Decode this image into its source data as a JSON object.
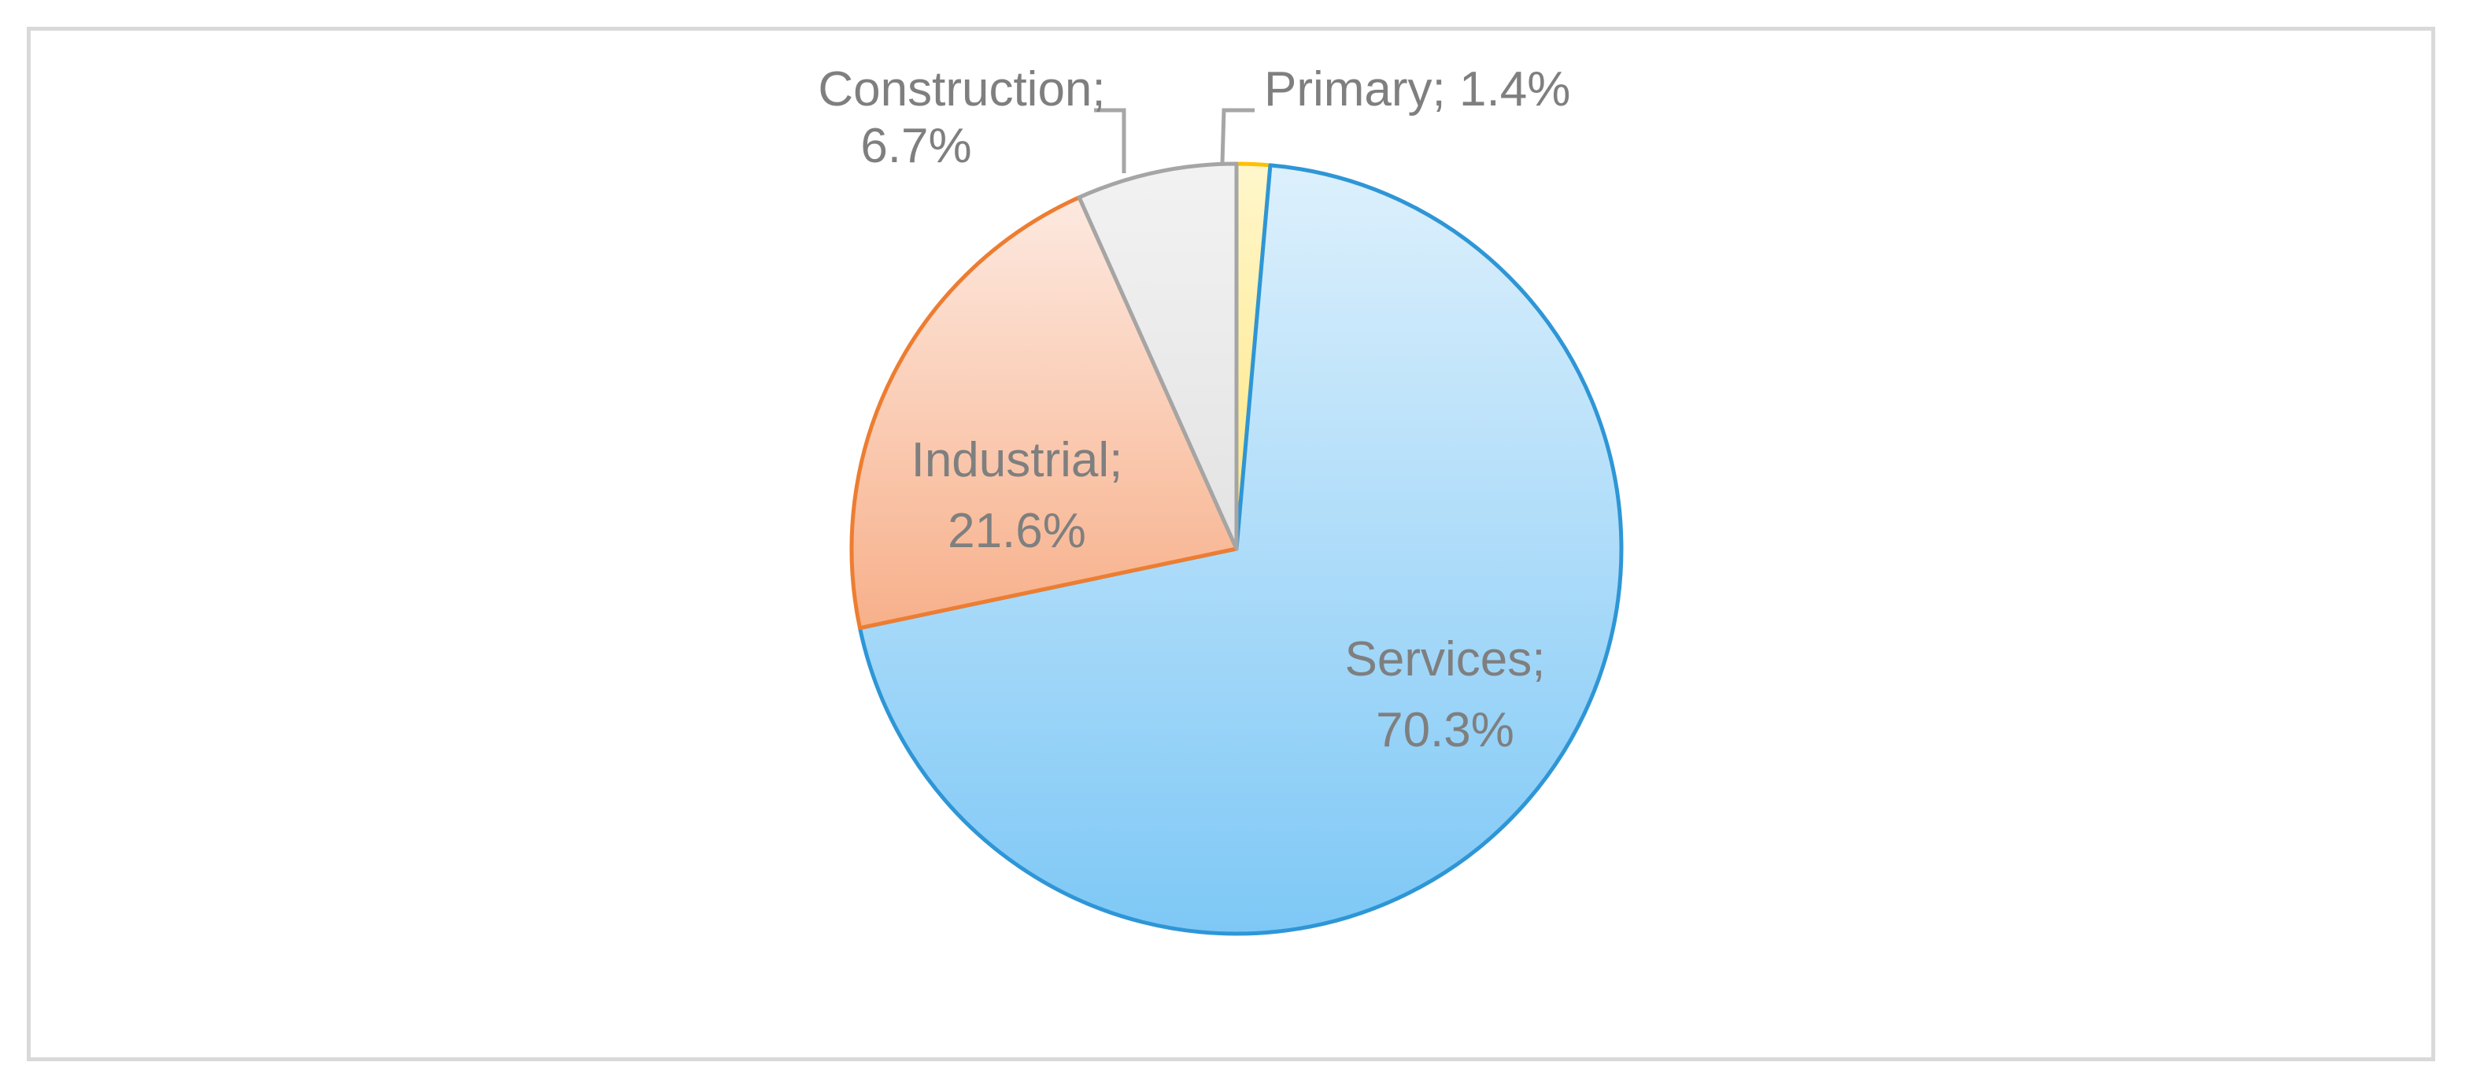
{
  "chart_data": {
    "type": "pie",
    "slices": [
      {
        "name": "Primary",
        "value": 1.4,
        "label_line1": "Primary; 1.4%",
        "label_line2": "",
        "color_top": "#fff7cc",
        "color_bottom": "#ffe680",
        "stroke": "#ffc000"
      },
      {
        "name": "Services",
        "value": 70.3,
        "label_line1": "Services;",
        "label_line2": "70.3%",
        "color_top": "#ddf0fc",
        "color_bottom": "#7ec8f6",
        "stroke": "#2e96d6"
      },
      {
        "name": "Industrial",
        "value": 21.6,
        "label_line1": "Industrial;",
        "label_line2": "21.6%",
        "color_top": "#fde9e0",
        "color_bottom": "#f7b08a",
        "stroke": "#ed7d31"
      },
      {
        "name": "Construction",
        "value": 6.7,
        "label_line1": "Construction;",
        "label_line2": "6.7%",
        "color_top": "#f2f2f2",
        "color_bottom": "#e3e3e3",
        "stroke": "#a5a5a5"
      }
    ],
    "label_color": "#7f7f7f",
    "legend": "none"
  }
}
